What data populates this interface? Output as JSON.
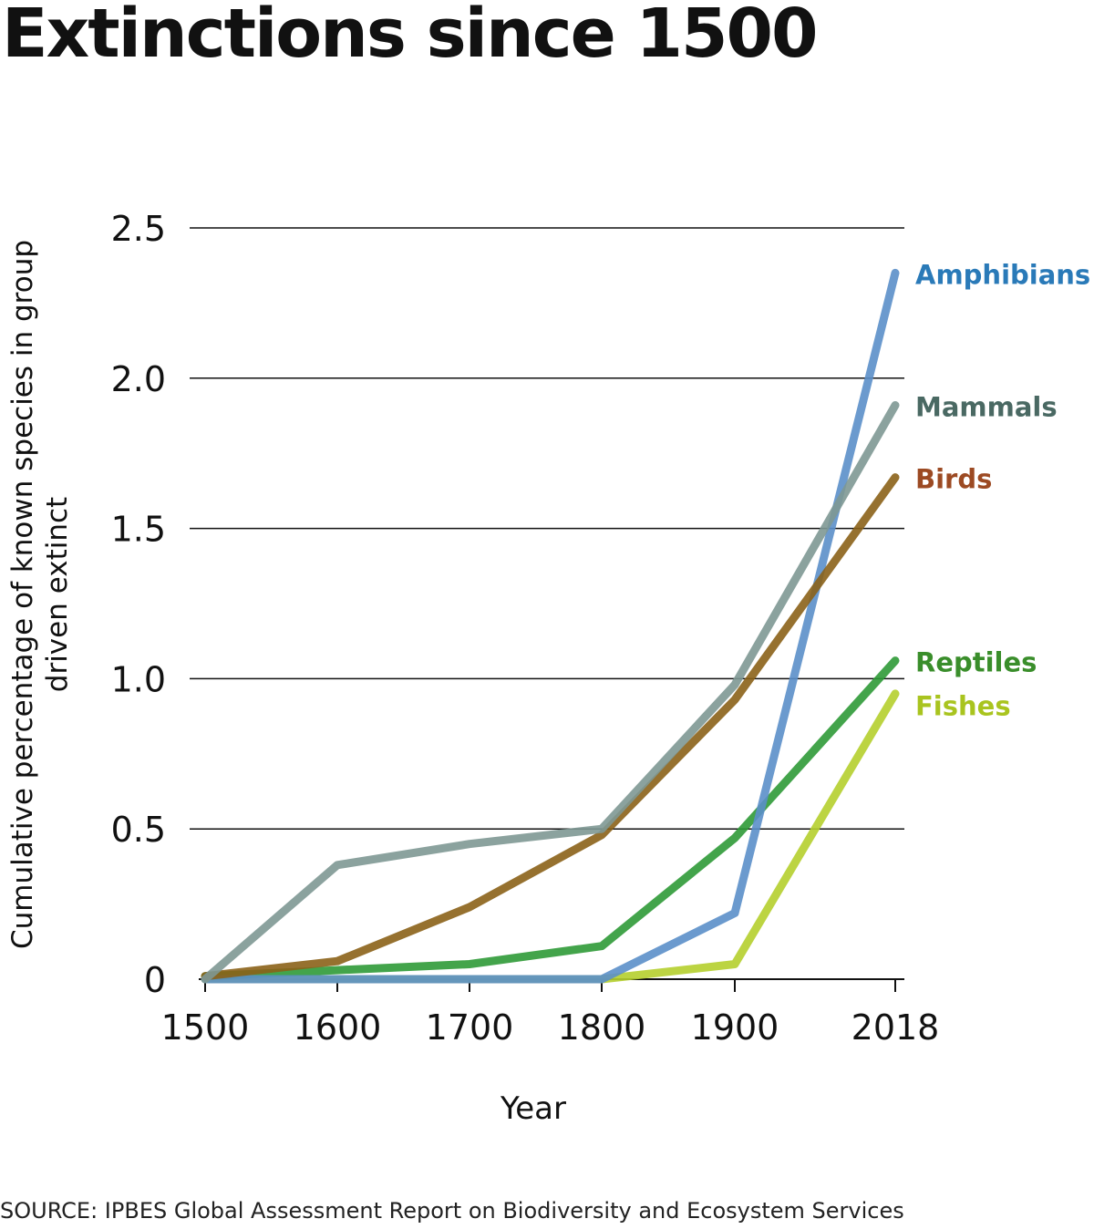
{
  "chart_data": {
    "type": "line",
    "title": "Extinctions since 1500",
    "xlabel": "Year",
    "ylabel": "Cumulative percentage of known species in group driven extinct",
    "x": [
      1500,
      1600,
      1700,
      1800,
      1900,
      2018
    ],
    "x_tick_labels": [
      "1500",
      "1600",
      "1700",
      "1800",
      "1900",
      "2018"
    ],
    "y_ticks": [
      0,
      0.5,
      1.0,
      1.5,
      2.0,
      2.5
    ],
    "y_tick_labels": [
      "0",
      "0.5",
      "1.0",
      "1.5",
      "2.0",
      "2.5"
    ],
    "ylim": [
      0,
      2.5
    ],
    "grid": true,
    "series": [
      {
        "name": "Fishes",
        "color": "#b5cf2e",
        "label_color": "#a9c41f",
        "values": [
          0.0,
          0.0,
          0.0,
          0.0,
          0.05,
          0.95
        ]
      },
      {
        "name": "Reptiles",
        "color": "#2f9a37",
        "label_color": "#3a8e2b",
        "values": [
          0.01,
          0.03,
          0.05,
          0.11,
          0.47,
          1.06
        ]
      },
      {
        "name": "Amphibians",
        "color": "#5b8fc9",
        "label_color": "#2a7ab8",
        "values": [
          0.0,
          0.0,
          0.0,
          0.0,
          0.22,
          2.35
        ]
      },
      {
        "name": "Birds",
        "color": "#8b6218",
        "label_color": "#9c4a23",
        "values": [
          0.01,
          0.06,
          0.24,
          0.48,
          0.93,
          1.67
        ]
      },
      {
        "name": "Mammals",
        "color": "#7e9893",
        "label_color": "#4a6963",
        "values": [
          0.0,
          0.38,
          0.45,
          0.5,
          0.98,
          1.91
        ]
      }
    ],
    "legend_order": [
      "Amphibians",
      "Mammals",
      "Birds",
      "Reptiles",
      "Fishes"
    ],
    "legend_placement": "right, at line ends"
  },
  "footer": {
    "source": "SOURCE: IPBES Global Assessment Report on Biodiversity and Ecosystem Services"
  }
}
